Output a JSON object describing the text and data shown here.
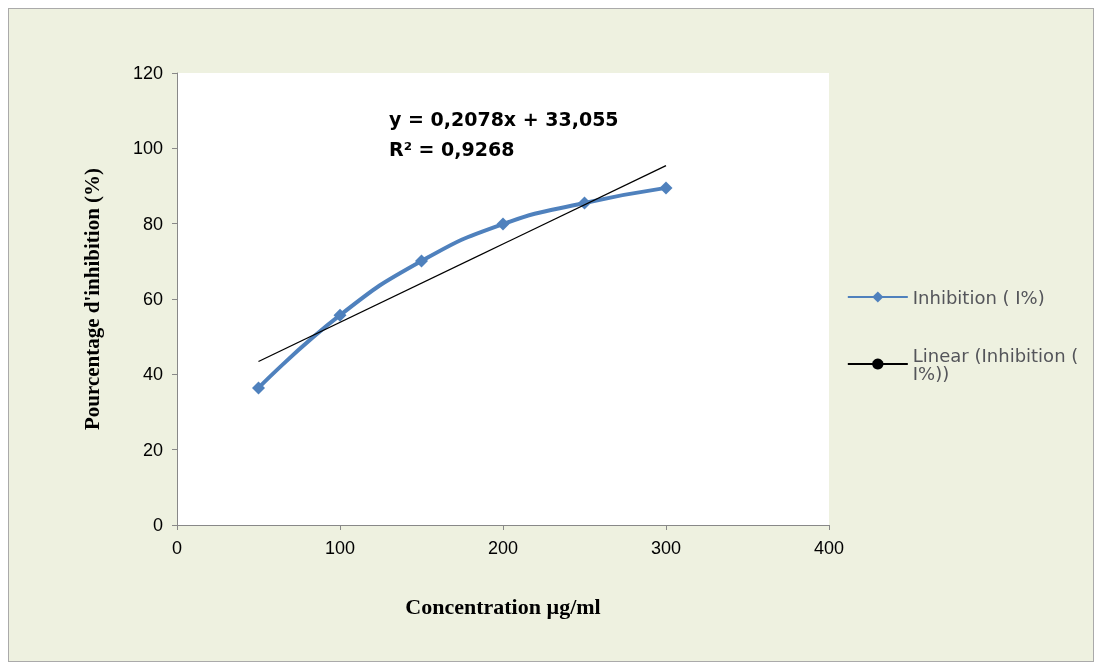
{
  "chart_data": {
    "type": "line",
    "xlabel": "Concentration µg/ml",
    "ylabel": "Pourcentage d'inhibition (%)",
    "annotations": [
      "y = 0,2078x + 33,055",
      "R² = 0,9268"
    ],
    "xlim": [
      0,
      400
    ],
    "xticks": [
      0,
      100,
      200,
      300,
      400
    ],
    "ylim": [
      0,
      120
    ],
    "yticks": [
      0,
      20,
      40,
      60,
      80,
      100,
      120
    ],
    "grid": false,
    "legend": "right",
    "marker": "diamond",
    "series": [
      {
        "name": "Inhibition ( I%)",
        "color": "#4f81bd",
        "x": [
          50,
          100,
          150,
          200,
          250,
          300
        ],
        "values": [
          36.4,
          55.7,
          70.1,
          79.9,
          85.5,
          89.5
        ]
      },
      {
        "name": "Linear (Inhibition ( I%))",
        "type": "line",
        "color": "#000000",
        "marker": "none",
        "x": [
          50,
          300
        ],
        "values": [
          43.4,
          95.4
        ]
      }
    ]
  }
}
